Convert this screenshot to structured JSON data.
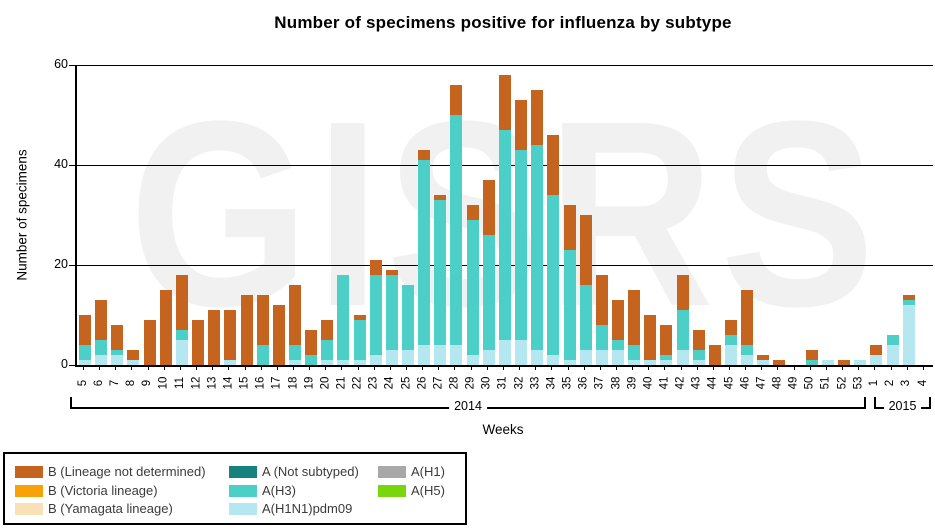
{
  "title": "Number of specimens positive for influenza by subtype",
  "watermark": "GISRS",
  "y_axis": {
    "label": "Number of specimens",
    "ticks": [
      0,
      20,
      40,
      60
    ],
    "max": 60
  },
  "x_axis": {
    "label": "Weeks"
  },
  "chart_data": {
    "type": "bar",
    "stacked": true,
    "title": "Number of specimens positive for influenza by subtype",
    "xlabel": "Weeks",
    "ylabel": "Number of specimens",
    "ylim": [
      0,
      60
    ],
    "grid": "horizontal lines at 20, 40, 60",
    "categories": [
      "5",
      "6",
      "7",
      "8",
      "9",
      "10",
      "11",
      "12",
      "13",
      "14",
      "15",
      "16",
      "17",
      "18",
      "19",
      "20",
      "21",
      "22",
      "23",
      "24",
      "25",
      "26",
      "27",
      "28",
      "29",
      "30",
      "31",
      "32",
      "33",
      "34",
      "35",
      "36",
      "37",
      "38",
      "39",
      "40",
      "41",
      "42",
      "43",
      "44",
      "45",
      "46",
      "47",
      "48",
      "49",
      "50",
      "51",
      "52",
      "53",
      "1",
      "2",
      "3",
      "4"
    ],
    "year_groups": [
      {
        "label": "2014",
        "count": 49
      },
      {
        "label": "2015",
        "count": 4
      }
    ],
    "series": [
      {
        "name": "B (Lineage not determined)",
        "color": "#c4641f",
        "values": [
          6,
          8,
          5,
          2,
          9,
          15,
          11,
          9,
          11,
          10,
          14,
          10,
          12,
          12,
          5,
          4,
          0,
          1,
          3,
          1,
          0,
          2,
          1,
          6,
          3,
          11,
          11,
          10,
          11,
          12,
          9,
          14,
          10,
          8,
          11,
          9,
          6,
          7,
          4,
          4,
          3,
          11,
          1,
          1,
          0,
          2,
          0,
          1,
          0,
          2,
          0,
          1,
          0
        ]
      },
      {
        "name": "B (Victoria lineage)",
        "color": "#f9a208",
        "values": [
          0,
          0,
          0,
          0,
          0,
          0,
          0,
          0,
          0,
          0,
          0,
          0,
          0,
          0,
          0,
          0,
          0,
          0,
          0,
          0,
          0,
          0,
          0,
          0,
          0,
          0,
          0,
          0,
          0,
          0,
          0,
          0,
          0,
          0,
          0,
          0,
          0,
          0,
          0,
          0,
          0,
          0,
          0,
          0,
          0,
          0,
          0,
          0,
          0,
          0,
          0,
          0,
          0
        ]
      },
      {
        "name": "B (Yamagata lineage)",
        "color": "#fae0b6",
        "values": [
          0,
          0,
          0,
          0,
          0,
          0,
          0,
          0,
          0,
          0,
          0,
          0,
          0,
          0,
          0,
          0,
          0,
          0,
          0,
          0,
          0,
          0,
          0,
          0,
          0,
          0,
          0,
          0,
          0,
          0,
          0,
          0,
          0,
          0,
          0,
          0,
          0,
          0,
          0,
          0,
          0,
          0,
          0,
          0,
          0,
          0,
          0,
          0,
          0,
          0,
          0,
          0,
          0
        ]
      },
      {
        "name": "A (Not subtyped)",
        "color": "#16817d",
        "values": [
          0,
          0,
          0,
          0,
          0,
          0,
          0,
          0,
          0,
          0,
          0,
          0,
          0,
          0,
          0,
          0,
          0,
          0,
          0,
          0,
          0,
          0,
          0,
          0,
          0,
          0,
          0,
          0,
          0,
          0,
          0,
          0,
          0,
          0,
          0,
          0,
          0,
          0,
          0,
          0,
          0,
          0,
          0,
          0,
          0,
          0,
          0,
          0,
          0,
          0,
          0,
          0,
          0
        ]
      },
      {
        "name": "A(H3)",
        "color": "#4bcfc6",
        "values": [
          3,
          3,
          1,
          0,
          0,
          0,
          2,
          0,
          0,
          0,
          0,
          4,
          0,
          3,
          2,
          4,
          17,
          8,
          16,
          15,
          13,
          37,
          29,
          46,
          27,
          23,
          42,
          38,
          41,
          32,
          22,
          13,
          5,
          2,
          3,
          0,
          1,
          8,
          2,
          0,
          2,
          2,
          0,
          0,
          0,
          1,
          0,
          0,
          0,
          0,
          2,
          1,
          0
        ]
      },
      {
        "name": "A(H1N1)pdm09",
        "color": "#b4e7ef",
        "values": [
          1,
          2,
          2,
          1,
          0,
          0,
          5,
          0,
          0,
          1,
          0,
          0,
          0,
          1,
          0,
          1,
          1,
          1,
          2,
          3,
          3,
          4,
          4,
          4,
          2,
          3,
          5,
          5,
          3,
          2,
          1,
          3,
          3,
          3,
          1,
          1,
          1,
          3,
          1,
          0,
          4,
          2,
          1,
          0,
          0,
          0,
          1,
          0,
          1,
          2,
          4,
          12,
          0
        ]
      },
      {
        "name": "A(H1)",
        "color": "#a8a8a8",
        "values": [
          0,
          0,
          0,
          0,
          0,
          0,
          0,
          0,
          0,
          0,
          0,
          0,
          0,
          0,
          0,
          0,
          0,
          0,
          0,
          0,
          0,
          0,
          0,
          0,
          0,
          0,
          0,
          0,
          0,
          0,
          0,
          0,
          0,
          0,
          0,
          0,
          0,
          0,
          0,
          0,
          0,
          0,
          0,
          0,
          0,
          0,
          0,
          0,
          0,
          0,
          0,
          0,
          0
        ]
      },
      {
        "name": "A(H5)",
        "color": "#79d60d",
        "values": [
          0,
          0,
          0,
          0,
          0,
          0,
          0,
          0,
          0,
          0,
          0,
          0,
          0,
          0,
          0,
          0,
          0,
          0,
          0,
          0,
          0,
          0,
          0,
          0,
          0,
          0,
          0,
          0,
          0,
          0,
          0,
          0,
          0,
          0,
          0,
          0,
          0,
          0,
          0,
          0,
          0,
          0,
          0,
          0,
          0,
          0,
          0,
          0,
          0,
          0,
          0,
          0,
          0
        ]
      }
    ],
    "stack_order": [
      "A(H1N1)pdm09",
      "A(H3)",
      "A (Not subtyped)",
      "A(H1)",
      "A(H5)",
      "B (Yamagata lineage)",
      "B (Victoria lineage)",
      "B (Lineage not determined)"
    ],
    "legend_position": "bottom-left box"
  },
  "legend": {
    "columns": [
      [
        "B (Lineage not determined)",
        "B (Victoria lineage)",
        "B (Yamagata lineage)"
      ],
      [
        "A (Not subtyped)",
        "A(H3)",
        "A(H1N1)pdm09"
      ],
      [
        "A(H1)",
        "A(H5)"
      ]
    ]
  }
}
